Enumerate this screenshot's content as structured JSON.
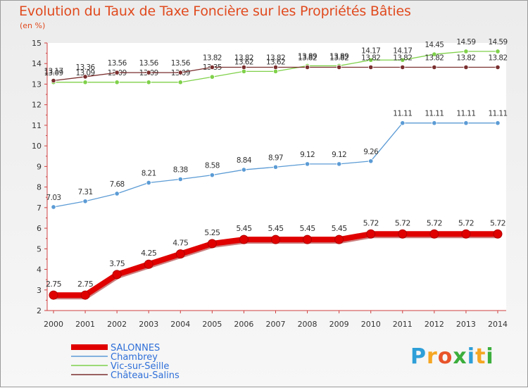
{
  "title": "Evolution du Taux de Taxe Foncière sur les Propriétés Bâties",
  "subtitle": "(en %)",
  "logo": {
    "text": "Proxiti",
    "letters": [
      "P",
      "r",
      "o",
      "x",
      "i",
      "t",
      "i"
    ],
    "colors": [
      "#2e9fd8",
      "#f5a623",
      "#e8542a",
      "#3cae3c",
      "#2e9fd8",
      "#f5a623",
      "#3cae3c"
    ]
  },
  "chart_data": {
    "type": "line",
    "title": "Evolution du Taux de Taxe Foncière sur les Propriétés Bâties",
    "ylabel": "(en %)",
    "xlabel": "",
    "ylim": [
      2,
      15
    ],
    "yticks": [
      2,
      3,
      4,
      5,
      6,
      7,
      8,
      9,
      10,
      11,
      12,
      13,
      14,
      15
    ],
    "x": [
      "2000",
      "2001",
      "2002",
      "2003",
      "2004",
      "2005",
      "2006",
      "2007",
      "2008",
      "2009",
      "2010",
      "2011",
      "2012",
      "2013",
      "2014"
    ],
    "series": [
      {
        "name": "SALONNES",
        "color": "#e00000",
        "values": [
          2.75,
          2.75,
          3.75,
          4.25,
          4.75,
          5.25,
          5.45,
          5.45,
          5.45,
          5.45,
          5.72,
          5.72,
          5.72,
          5.72,
          5.72
        ],
        "labels": [
          "2.75",
          "2.75",
          "3.75",
          "4.25",
          "4.75",
          "5.25",
          "5.45",
          "5.45",
          "5.45",
          "5.45",
          "5.72",
          "5.72",
          "5.72",
          "5.72",
          "5.72"
        ]
      },
      {
        "name": "Chambrey",
        "color": "#5b9bd5",
        "values": [
          7.03,
          7.31,
          7.68,
          8.21,
          8.38,
          8.58,
          8.84,
          8.97,
          9.12,
          9.12,
          9.26,
          11.11,
          11.11,
          11.11,
          11.11
        ],
        "labels": [
          "7.03",
          "7.31",
          "7.68",
          "8.21",
          "8.38",
          "8.58",
          "8.84",
          "8.97",
          "9.12",
          "9.12",
          "9.26",
          "11.11",
          "11.11",
          "11.11",
          "11.11"
        ]
      },
      {
        "name": "Vic-sur-Seille",
        "color": "#7fd14a",
        "values": [
          13.09,
          13.09,
          13.09,
          13.09,
          13.09,
          13.35,
          13.62,
          13.62,
          13.89,
          13.89,
          14.17,
          14.17,
          14.45,
          14.59,
          14.59
        ],
        "labels": [
          "13.09",
          "13.09",
          "13.09",
          "13.09",
          "13.09",
          "13.35",
          "13.62",
          "13.62",
          "13.89",
          "13.89",
          "14.17",
          "14.17",
          "14.45",
          "14.59",
          "14.59"
        ]
      },
      {
        "name": "Château-Salins",
        "color": "#7a2e2e",
        "values": [
          13.17,
          13.36,
          13.56,
          13.56,
          13.56,
          13.82,
          13.82,
          13.82,
          13.82,
          13.82,
          13.82,
          13.82,
          13.82,
          13.82,
          13.82
        ],
        "labels": [
          "13.17",
          "13.36",
          "13.56",
          "13.56",
          "13.56",
          "13.82",
          "13.82",
          "13.82",
          "13.82",
          "13.82",
          "13.82",
          "13.82",
          "13.82",
          "13.82",
          "13.82"
        ]
      }
    ],
    "legend": [
      "SALONNES",
      "Chambrey",
      "Vic-sur-Seille",
      "Château-Salins"
    ],
    "grid": false
  }
}
